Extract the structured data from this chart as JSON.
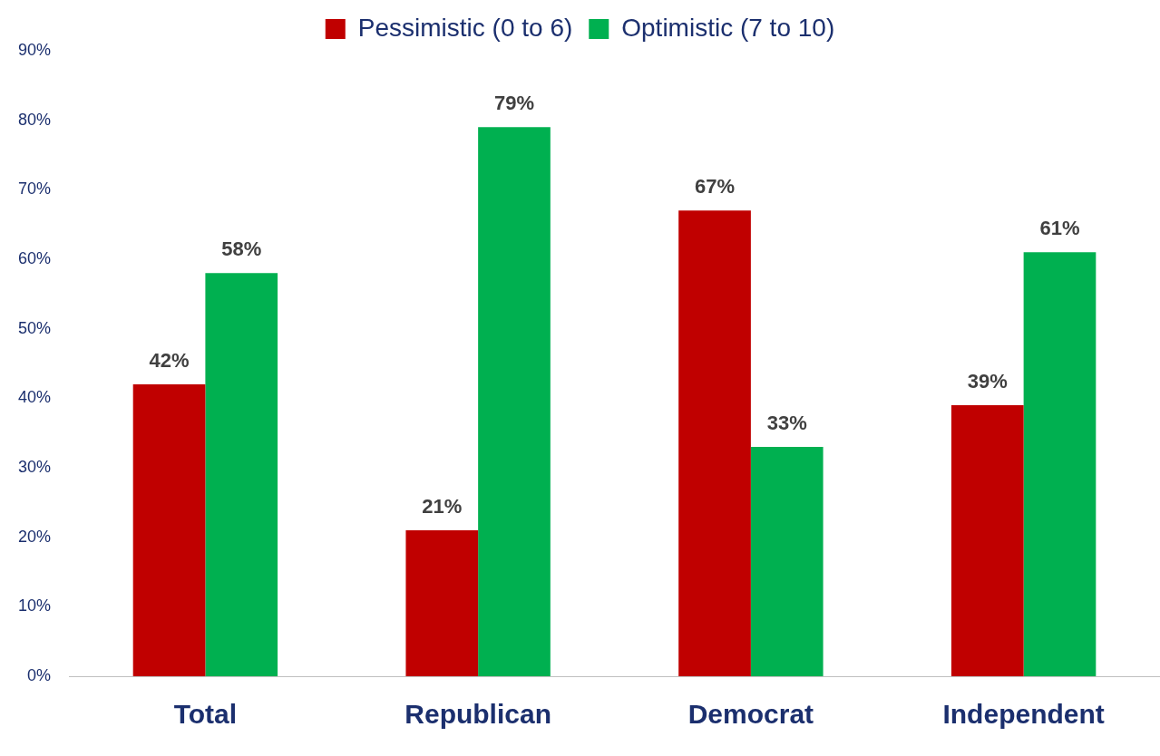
{
  "chart_data": {
    "type": "bar",
    "categories": [
      "Total",
      "Republican",
      "Democrat",
      "Independent"
    ],
    "series": [
      {
        "name": "Pessimistic (0 to 6)",
        "color": "#c00000",
        "values": [
          42,
          21,
          67,
          39
        ],
        "value_labels": [
          "42%",
          "21%",
          "67%",
          "39%"
        ]
      },
      {
        "name": "Optimistic (7 to 10)",
        "color": "#00b050",
        "values": [
          58,
          79,
          33,
          61
        ],
        "value_labels": [
          "58%",
          "79%",
          "33%",
          "61%"
        ]
      }
    ],
    "ylim": [
      0,
      90
    ],
    "yticks": [
      {
        "value": 0,
        "label": "0%"
      },
      {
        "value": 10,
        "label": "10%"
      },
      {
        "value": 20,
        "label": "20%"
      },
      {
        "value": 30,
        "label": "30%"
      },
      {
        "value": 40,
        "label": "40%"
      },
      {
        "value": 50,
        "label": "50%"
      },
      {
        "value": 60,
        "label": "60%"
      },
      {
        "value": 70,
        "label": "70%"
      },
      {
        "value": 80,
        "label": "80%"
      },
      {
        "value": 90,
        "label": "90%"
      }
    ],
    "grid": false,
    "legend": "top"
  }
}
